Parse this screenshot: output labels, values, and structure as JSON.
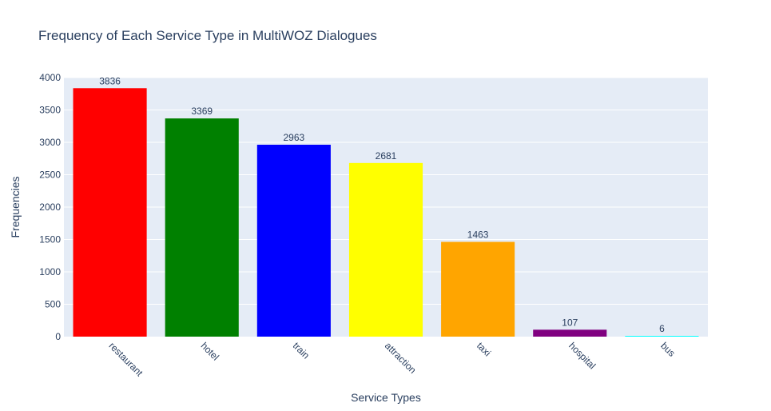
{
  "chart_data": {
    "type": "bar",
    "title": "Frequency of Each Service Type in MultiWOZ Dialogues",
    "xlabel": "Service Types",
    "ylabel": "Frequencies",
    "ylim": [
      0,
      4000
    ],
    "yticks": [
      0,
      500,
      1000,
      1500,
      2000,
      2500,
      3000,
      3500,
      4000
    ],
    "grid": true,
    "categories": [
      "restaurant",
      "hotel",
      "train",
      "attraction",
      "taxi",
      "hospital",
      "bus"
    ],
    "values": [
      3836,
      3369,
      2963,
      2681,
      1463,
      107,
      6
    ],
    "colors": [
      "#ff0000",
      "#008000",
      "#0000ff",
      "#ffff00",
      "#ffa500",
      "#800080",
      "#00ffff"
    ],
    "plot_background": "#e5ecf6",
    "text_color": "#2a3f5f"
  }
}
